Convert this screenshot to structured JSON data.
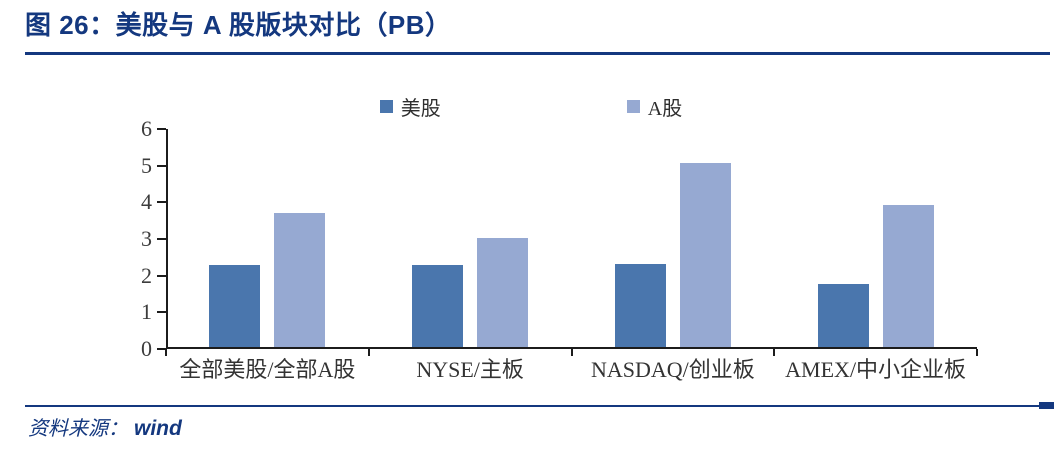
{
  "figure": {
    "title": "图 26：美股与 A 股版块对比（PB）",
    "source_label": "资料来源：",
    "source_value": "wind"
  },
  "chart_data": {
    "type": "bar",
    "title": "美股与 A 股版块对比（PB）",
    "categories": [
      "全部美股/全部A股",
      "NYSE/主板",
      "NASDAQ/创业板",
      "AMEX/中小企业板"
    ],
    "series": [
      {
        "name": "美股",
        "color": "#4a76ad",
        "values": [
          2.28,
          2.28,
          2.33,
          1.77
        ]
      },
      {
        "name": "A股",
        "color": "#96a9d2",
        "values": [
          3.71,
          3.03,
          5.08,
          3.92
        ]
      }
    ],
    "xlabel": "",
    "ylabel": "",
    "ylim": [
      0,
      6
    ],
    "yticks": [
      0,
      1,
      2,
      3,
      4,
      5,
      6
    ],
    "grid": false,
    "legend_position": "top"
  },
  "colors": {
    "accent_navy": "#14387f",
    "bar_us": "#4a76ad",
    "bar_a": "#96a9d2",
    "axis": "#1c1c1c"
  }
}
